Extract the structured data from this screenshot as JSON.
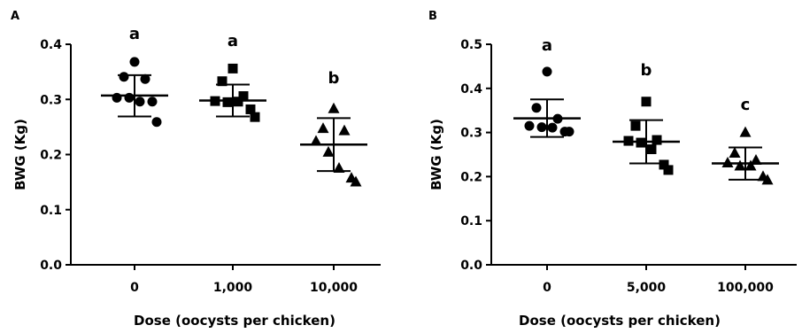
{
  "chart_data": [
    {
      "panel": "A",
      "type": "scatter",
      "ylabel": "BWG (Kg)",
      "xlabel": "Dose (oocysts per chicken)",
      "categories": [
        "0",
        "1,000",
        "10,000"
      ],
      "yticks": [
        "0.0",
        "0.1",
        "0.2",
        "0.3",
        "0.4"
      ],
      "ylim": [
        0,
        0.4
      ],
      "groups": [
        {
          "category": "0",
          "marker": "circle",
          "letter": "a",
          "points": [
            0.368,
            0.341,
            0.337,
            0.303,
            0.303,
            0.296,
            0.296,
            0.259
          ],
          "mean": 0.307,
          "sd_low": 0.269,
          "sd_high": 0.344
        },
        {
          "category": "1,000",
          "marker": "square",
          "letter": "a",
          "points": [
            0.356,
            0.333,
            0.306,
            0.297,
            0.295,
            0.296,
            0.282,
            0.268
          ],
          "mean": 0.298,
          "sd_low": 0.269,
          "sd_high": 0.327
        },
        {
          "category": "10,000",
          "marker": "triangle",
          "letter": "b",
          "points": [
            0.284,
            0.248,
            0.244,
            0.225,
            0.205,
            0.176,
            0.158,
            0.151
          ],
          "mean": 0.218,
          "sd_low": 0.17,
          "sd_high": 0.266
        }
      ]
    },
    {
      "panel": "B",
      "type": "scatter",
      "ylabel": "BWG (Kg)",
      "xlabel": "Dose (oocysts per chicken)",
      "categories": [
        "0",
        "5,000",
        "100,000"
      ],
      "yticks": [
        "0.0",
        "0.1",
        "0.2",
        "0.3",
        "0.4",
        "0.5"
      ],
      "ylim": [
        0,
        0.5
      ],
      "groups": [
        {
          "category": "0",
          "marker": "circle",
          "letter": "a",
          "points": [
            0.438,
            0.356,
            0.331,
            0.315,
            0.312,
            0.311,
            0.302,
            0.302
          ],
          "mean": 0.332,
          "sd_low": 0.29,
          "sd_high": 0.375
        },
        {
          "category": "5,000",
          "marker": "square",
          "letter": "b",
          "points": [
            0.37,
            0.315,
            0.283,
            0.281,
            0.277,
            0.262,
            0.227,
            0.215
          ],
          "mean": 0.279,
          "sd_low": 0.23,
          "sd_high": 0.328
        },
        {
          "category": "100,000",
          "marker": "triangle",
          "letter": "c",
          "points": [
            0.301,
            0.254,
            0.238,
            0.232,
            0.225,
            0.225,
            0.201,
            0.193
          ],
          "mean": 0.23,
          "sd_low": 0.193,
          "sd_high": 0.266
        }
      ]
    }
  ]
}
